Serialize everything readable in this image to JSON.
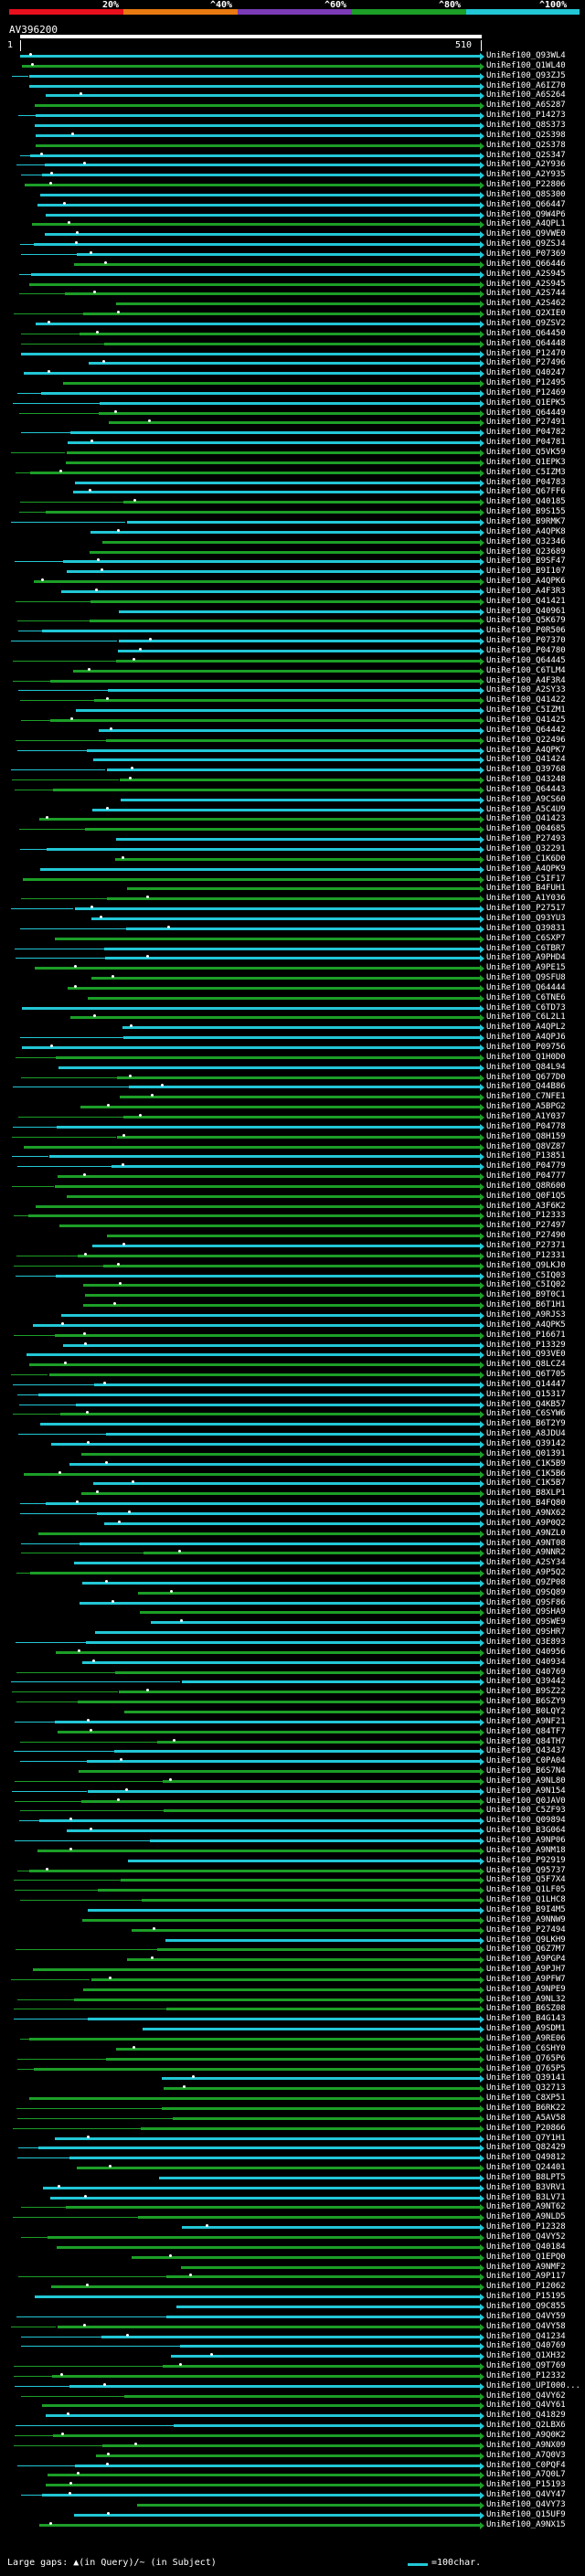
{
  "pid_scale": {
    "labels": [
      "20%",
      "^40%",
      "^60%",
      "^80%",
      "^100%"
    ],
    "colors": [
      "#e8101c",
      "#e97a12",
      "#7b3ab6",
      "#1c9e27",
      "#22c7d6"
    ]
  },
  "query": {
    "id": "AV396200",
    "start": "1",
    "end": "510"
  },
  "colors": {
    "green": "#1c9e27",
    "cyan": "#22c7d6",
    "gap": "#555555"
  },
  "hits": [
    "UniRef100_Q93WL4",
    "UniRef100_Q1WL40",
    "UniRef100_Q93ZJ5",
    "UniRef100_A6IZ70",
    "UniRef100_A6S264",
    "UniRef100_A6S287",
    "UniRef100_P14273",
    "UniRef100_Q8S373",
    "UniRef100_Q2S398",
    "UniRef100_Q2S378",
    "UniRef100_Q2S347",
    "UniRef100_A2Y936",
    "UniRef100_A2Y935",
    "UniRef100_P22806",
    "UniRef100_Q8S300",
    "UniRef100_Q66447",
    "UniRef100_Q9W4P6",
    "UniRef100_A4QPL1",
    "UniRef100_Q9VWE0",
    "UniRef100_Q9ZSJ4",
    "UniRef100_P07369",
    "UniRef100_Q66446",
    "UniRef100_A2S945",
    "UniRef100_A2S945",
    "UniRef100_A2S744",
    "UniRef100_A2S462",
    "UniRef100_Q2XIE0",
    "UniRef100_Q9ZSV2",
    "UniRef100_Q64450",
    "UniRef100_Q64448",
    "UniRef100_P12470",
    "UniRef100_P27496",
    "UniRef100_Q40247",
    "UniRef100_P12495",
    "UniRef100_P12469",
    "UniRef100_Q1EPK5",
    "UniRef100_Q64449",
    "UniRef100_P27491",
    "UniRef100_P04782",
    "UniRef100_P04781",
    "UniRef100_Q5VK59",
    "UniRef100_Q1EPK3",
    "UniRef100_C5IZM3",
    "UniRef100_P04783",
    "UniRef100_Q67FF6",
    "UniRef100_Q40185",
    "UniRef100_B9S155",
    "UniRef100_B9RMK7",
    "UniRef100_A4QPK8",
    "UniRef100_Q32346",
    "UniRef100_Q23689",
    "UniRef100_B9SF47",
    "UniRef100_B9I107",
    "UniRef100_A4QPK6",
    "UniRef100_A4F3R3",
    "UniRef100_Q41421",
    "UniRef100_Q40961",
    "UniRef100_Q5K679",
    "UniRef100_P0R506",
    "UniRef100_P07370",
    "UniRef100_P04780",
    "UniRef100_Q64445",
    "UniRef100_C6TLM4",
    "UniRef100_A4F3R4",
    "UniRef100_A2SY33",
    "UniRef100_Q41422",
    "UniRef100_C5IZM1",
    "UniRef100_Q41425",
    "UniRef100_Q64442",
    "UniRef100_Q22496",
    "UniRef100_A4QPK7",
    "UniRef100_Q41424",
    "UniRef100_Q39768",
    "UniRef100_Q43248",
    "UniRef100_Q64443",
    "UniRef100_A9CS60",
    "UniRef100_A5C4U9",
    "UniRef100_Q41423",
    "UniRef100_Q04685",
    "UniRef100_P27493",
    "UniRef100_Q32291",
    "UniRef100_C1K6D0",
    "UniRef100_A4QPK9",
    "UniRef100_C5IF17",
    "UniRef100_B4FUH1",
    "UniRef100_A1Y036",
    "UniRef100_P27517",
    "UniRef100_Q93YU3",
    "UniRef100_Q39831",
    "UniRef100_C6SXP7",
    "UniRef100_C6TBR7",
    "UniRef100_A9PHD4",
    "UniRef100_A9PE15",
    "UniRef100_Q9SFU8",
    "UniRef100_Q64444",
    "UniRef100_C6TNE6",
    "UniRef100_C6TD73",
    "UniRef100_C6L2L1",
    "UniRef100_A4QPL2",
    "UniRef100_A4QPJ6",
    "UniRef100_P09756",
    "UniRef100_Q1H0D0",
    "UniRef100_Q84L94",
    "UniRef100_Q677D0",
    "UniRef100_Q44B86",
    "UniRef100_C7NFE1",
    "UniRef100_A5BPG2",
    "UniRef100_A1Y037",
    "UniRef100_P04778",
    "UniRef100_Q8H159",
    "UniRef100_Q8VZ87",
    "UniRef100_P13851",
    "UniRef100_P04779",
    "UniRef100_P04777",
    "UniRef100_Q8R600",
    "UniRef100_Q0F1Q5",
    "UniRef100_A3F6K2",
    "UniRef100_P12333",
    "UniRef100_P27497",
    "UniRef100_P27490",
    "UniRef100_P27371",
    "UniRef100_P12331",
    "UniRef100_Q9LKJ0",
    "UniRef100_C5IQ03",
    "UniRef100_C5IQ02",
    "UniRef100_B9T0C1",
    "UniRef100_B6T1H1",
    "UniRef100_A9RJS3",
    "UniRef100_A4QPK5",
    "UniRef100_P16671",
    "UniRef100_P13329",
    "UniRef100_Q93VE0",
    "UniRef100_Q8LCZ4",
    "UniRef100_Q6T705",
    "UniRef100_Q14447",
    "UniRef100_Q15317",
    "UniRef100_Q4KB57",
    "UniRef100_C6SYW6",
    "UniRef100_B6T2Y9",
    "UniRef100_A8JDU4",
    "UniRef100_Q39142",
    "UniRef100_Q01391",
    "UniRef100_C1K5B9",
    "UniRef100_C1K5B6",
    "UniRef100_C1K5B7",
    "UniRef100_B8XLP1",
    "UniRef100_B4FQ80",
    "UniRef100_A9NX62",
    "UniRef100_A9P0Q2",
    "UniRef100_A9NZL0",
    "UniRef100_A9NT08",
    "UniRef100_A9NNR2",
    "UniRef100_A2SY34",
    "UniRef100_A9P5Q2",
    "UniRef100_Q9ZP08",
    "UniRef100_Q9SQ89",
    "UniRef100_Q9SF86",
    "UniRef100_Q9SHA9",
    "UniRef100_Q9SWE9",
    "UniRef100_Q9SHR7",
    "UniRef100_Q3E893",
    "UniRef100_Q40956",
    "UniRef100_Q40934",
    "UniRef100_Q40769",
    "UniRef100_Q39442",
    "UniRef100_B9SZ22",
    "UniRef100_B6SZY9",
    "UniRef100_B0LQY2",
    "UniRef100_A9NF21",
    "UniRef100_Q84TF7",
    "UniRef100_Q84TH7",
    "UniRef100_Q43437",
    "UniRef100_C0PA04",
    "UniRef100_B6S7N4",
    "UniRef100_A9NL80",
    "UniRef100_A9N154",
    "UniRef100_Q0JAV0",
    "UniRef100_C5ZF93",
    "UniRef100_Q09894",
    "UniRef100_B3G064",
    "UniRef100_A9NP06",
    "UniRef100_A9NM18",
    "UniRef100_P92919",
    "UniRef100_Q95737",
    "UniRef100_Q5F7X4",
    "UniRef100_Q1LF05",
    "UniRef100_Q1LHC8",
    "UniRef100_B9I4M5",
    "UniRef100_A9NNW9",
    "UniRef100_P27494",
    "UniRef100_Q9LKH9",
    "UniRef100_Q6Z7M7",
    "UniRef100_A9PGP4",
    "UniRef100_A9PJH7",
    "UniRef100_A9PFW7",
    "UniRef100_A9NPE9",
    "UniRef100_A9NL32",
    "UniRef100_B6SZ08",
    "UniRef100_B4G143",
    "UniRef100_A9SDM1",
    "UniRef100_A9RE06",
    "UniRef100_C6SHY0",
    "UniRef100_Q765P6",
    "UniRef100_Q765P5",
    "UniRef100_Q39141",
    "UniRef100_Q32713",
    "UniRef100_C8XP51",
    "UniRef100_B6RK22",
    "UniRef100_A5AV58",
    "UniRef100_P20866",
    "UniRef100_Q7Y1H1",
    "UniRef100_Q82429",
    "UniRef100_Q49812",
    "UniRef100_Q24401",
    "UniRef100_B8LPT5",
    "UniRef100_B3VRV1",
    "UniRef100_B3LV71",
    "UniRef100_A9NT62",
    "UniRef100_A9NLD5",
    "UniRef100_P12328",
    "UniRef100_Q4VY52",
    "UniRef100_Q40184",
    "UniRef100_Q1EPQ0",
    "UniRef100_A9NMF2",
    "UniRef100_A9P117",
    "UniRef100_P12062",
    "UniRef100_P15195",
    "UniRef100_Q9C855",
    "UniRef100_Q4VY59",
    "UniRef100_Q4VY58",
    "UniRef100_Q41234",
    "UniRef100_Q40769",
    "UniRef100_Q1XH32",
    "UniRef100_Q9T769",
    "UniRef100_P12332",
    "UniRef100_UPI000...",
    "UniRef100_Q4VY62",
    "UniRef100_Q4VY61",
    "UniRef100_Q41829",
    "UniRef100_Q2LBX6",
    "UniRef100_A9Q0K2",
    "UniRef100_A9NX09",
    "UniRef100_A7Q0V3",
    "UniRef100_C0PQF4",
    "UniRef100_A7Q0L7",
    "UniRef100_P15193",
    "UniRef100_Q4VY47",
    "UniRef100_Q4VY73",
    "UniRef100_Q15UF9",
    "UniRef100_A9NX15"
  ],
  "legend": {
    "large_gaps": "Large gaps: ▲(in Query)/~ (in Subject)",
    "scale": "=100char."
  }
}
